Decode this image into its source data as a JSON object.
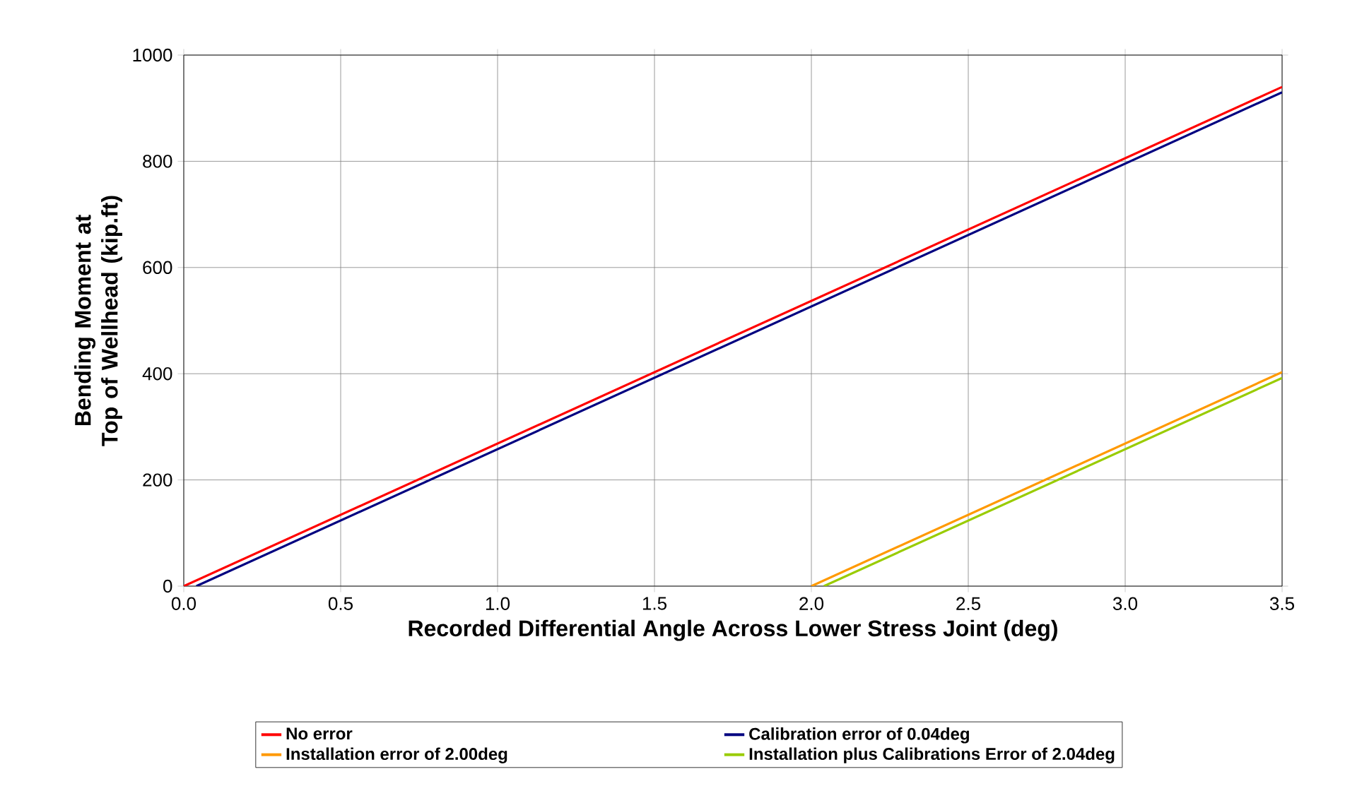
{
  "chart_data": {
    "type": "line",
    "xlabel": "Recorded Differential Angle Across Lower Stress Joint (deg)",
    "ylabel": "Bending Moment at Top of Wellhead (kip.ft)",
    "xlim": [
      0,
      3.5
    ],
    "ylim": [
      0,
      1000
    ],
    "xticks": [
      {
        "value": 0,
        "label": "0.0"
      },
      {
        "value": 0.5,
        "label": "0.5"
      },
      {
        "value": 1,
        "label": "1.0"
      },
      {
        "value": 1.5,
        "label": "1.5"
      },
      {
        "value": 2,
        "label": "2.0"
      },
      {
        "value": 2.5,
        "label": "2.5"
      },
      {
        "value": 3,
        "label": "3.0"
      },
      {
        "value": 3.5,
        "label": "3.5"
      }
    ],
    "yticks": [
      0,
      200,
      400,
      600,
      800,
      1000
    ],
    "grid": true,
    "legend": "bottom",
    "marker": "none",
    "line_style": "solid",
    "series": [
      {
        "name": "No error",
        "color": "#ff0000",
        "x": [
          0,
          3.5
        ],
        "values": [
          0,
          940
        ]
      },
      {
        "name": "Calibration error of 0.04deg",
        "color": "#000080",
        "x": [
          0.04,
          3.5
        ],
        "values": [
          0,
          930
        ]
      },
      {
        "name": "Installation error of 2.00deg",
        "color": "#ff9900",
        "x": [
          2.0,
          3.5
        ],
        "values": [
          0,
          403
        ]
      },
      {
        "name": "Installation plus Calibrations Error of 2.04deg",
        "color": "#99cc00",
        "x": [
          2.04,
          3.5
        ],
        "values": [
          0,
          392
        ]
      }
    ]
  }
}
